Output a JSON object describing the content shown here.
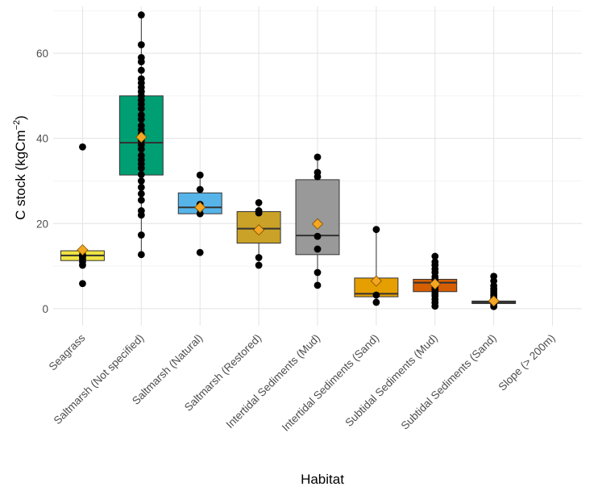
{
  "chart_data": {
    "type": "box",
    "xlabel": "Habitat",
    "ylabel": "C stock (kgCm",
    "ylabel_exponent": "−2",
    "ylabel_close": ")",
    "ylim": [
      -4,
      71
    ],
    "yticks": [
      0,
      20,
      40,
      60
    ],
    "grid": true,
    "mean_marker_color": "#F5A623",
    "categories": [
      "Seagrass",
      "Saltmarsh (Not specified)",
      "Saltmarsh (Natural)",
      "Saltmarsh (Restored)",
      "Intertidal Sediments (Mud)",
      "Intertidal Sediments (Sand)",
      "Subtidal Sediments (Mud)",
      "Subtidal Sediments (Sand)",
      "Slope (> 200m)"
    ],
    "boxes": [
      {
        "category": "Seagrass",
        "color": "#F0E442",
        "q1": 11.3,
        "median": 12.5,
        "q3": 13.6,
        "whisker_low": 10.0,
        "whisker_high": 13.6,
        "mean": 13.8,
        "points": [
          38.0,
          13.6,
          12.7,
          12.4,
          12.1,
          11.6,
          11.0,
          10.2,
          5.9
        ]
      },
      {
        "category": "Saltmarsh (Not specified)",
        "color": "#009E73",
        "q1": 31.4,
        "median": 39.0,
        "q3": 50.0,
        "whisker_low": 12.7,
        "whisker_high": 69.0,
        "mean": 40.3,
        "points": [
          69.0,
          62.0,
          59.0,
          58.0,
          56.0,
          54.0,
          53.0,
          52.0,
          51.0,
          50.0,
          49.0,
          48.0,
          47.0,
          45.5,
          44.5,
          43.0,
          42.0,
          41.0,
          40.0,
          39.5,
          38.5,
          37.5,
          36.0,
          35.0,
          34.0,
          33.0,
          31.5,
          30.0,
          28.5,
          27.0,
          25.5,
          23.0,
          22.0,
          17.3,
          12.7
        ]
      },
      {
        "category": "Saltmarsh (Natural)",
        "color": "#56B4E9",
        "q1": 22.3,
        "median": 23.8,
        "q3": 27.2,
        "whisker_low": 22.0,
        "whisker_high": 31.4,
        "mean": 23.8,
        "points": [
          31.4,
          28.0,
          24.5,
          23.5,
          22.3,
          13.2
        ]
      },
      {
        "category": "Saltmarsh (Restored)",
        "color": "#C9A227",
        "q1": 15.4,
        "median": 18.8,
        "q3": 22.8,
        "whisker_low": 10.2,
        "whisker_high": 24.9,
        "mean": 18.5,
        "points": [
          24.9,
          23.0,
          22.5,
          12.0,
          10.2
        ]
      },
      {
        "category": "Intertidal Sediments (Mud)",
        "color": "#999999",
        "q1": 12.7,
        "median": 17.2,
        "q3": 30.3,
        "whisker_low": 5.5,
        "whisker_high": 35.6,
        "mean": 19.9,
        "points": [
          35.6,
          32.0,
          31.0,
          20.0,
          17.0,
          14.0,
          8.5,
          5.5
        ]
      },
      {
        "category": "Intertidal Sediments (Sand)",
        "color": "#E69F00",
        "q1": 2.8,
        "median": 3.5,
        "q3": 7.2,
        "whisker_low": 1.5,
        "whisker_high": 18.6,
        "mean": 6.5,
        "points": [
          18.6,
          3.2,
          1.5
        ]
      },
      {
        "category": "Subtidal Sediments (Mud)",
        "color": "#D55E00",
        "q1": 4.0,
        "median": 6.1,
        "q3": 6.9,
        "whisker_low": 0.6,
        "whisker_high": 12.3,
        "mean": 5.8,
        "points": [
          12.3,
          11.0,
          10.2,
          9.3,
          8.5,
          7.5,
          6.8,
          6.2,
          5.6,
          5.0,
          4.4,
          3.6,
          3.0,
          2.2,
          1.4,
          0.6
        ]
      },
      {
        "category": "Subtidal Sediments (Sand)",
        "color": "#555555",
        "q1": 1.2,
        "median": 1.5,
        "q3": 1.8,
        "whisker_low": 0.5,
        "whisker_high": 2.0,
        "mean": 1.8,
        "points": [
          7.6,
          6.5,
          5.4,
          4.7,
          4.1,
          3.5,
          3.0,
          2.5,
          2.1,
          1.6,
          1.2,
          0.8,
          0.5
        ]
      }
    ]
  }
}
